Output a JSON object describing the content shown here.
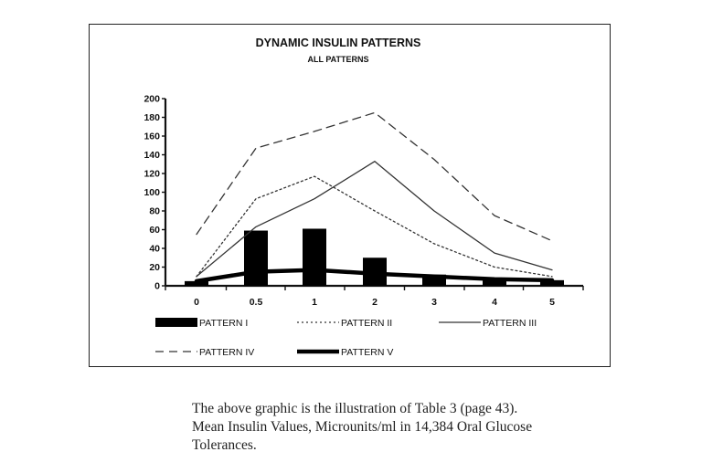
{
  "chart_data": {
    "type": "line",
    "title": "DYNAMIC INSULIN PATTERNS",
    "subtitle": "ALL PATTERNS",
    "xlabel": "",
    "ylabel": "",
    "ylim": [
      0,
      200
    ],
    "yticks": [
      "0",
      "20",
      "40",
      "60",
      "80",
      "100",
      "120",
      "140",
      "160",
      "180",
      "200"
    ],
    "categories": [
      "0",
      "0.5",
      "1",
      "2",
      "3",
      "4",
      "5"
    ],
    "grid": false,
    "legend": "bottom",
    "series": [
      {
        "name": "PATTERN I",
        "render": "bar",
        "values": [
          5,
          59,
          61,
          30,
          12,
          8,
          6
        ]
      },
      {
        "name": "PATTERN II",
        "render": "dotted",
        "values": [
          10,
          93,
          117,
          80,
          45,
          20,
          10
        ]
      },
      {
        "name": "PATTERN III",
        "render": "solid",
        "values": [
          10,
          63,
          93,
          133,
          80,
          35,
          17
        ]
      },
      {
        "name": "PATTERN IV",
        "render": "dashed",
        "values": [
          55,
          147,
          165,
          185,
          135,
          75,
          48
        ]
      },
      {
        "name": "PATTERN V",
        "render": "thick",
        "values": [
          5,
          15,
          17,
          13,
          10,
          7,
          6
        ]
      }
    ]
  },
  "caption": {
    "line1": "The above graphic is the illustration of Table 3 (page 43).",
    "line2": "Mean Insulin Values, Microunits/ml in 14,384 Oral Glucose",
    "line3": "Tolerances."
  }
}
